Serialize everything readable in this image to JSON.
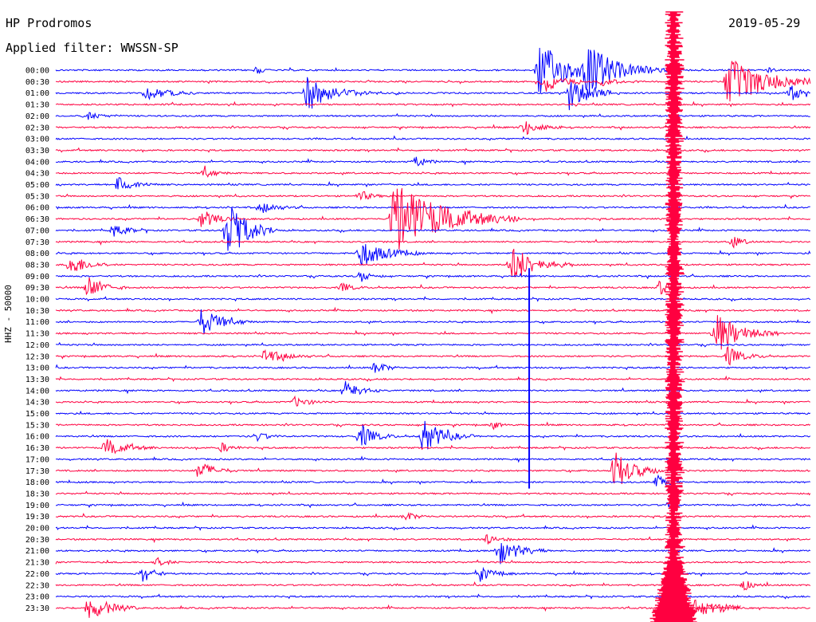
{
  "header": {
    "station": "HP Prodromos",
    "filter": "Applied filter: WWSSN-SP",
    "date": "2019-05-29",
    "channel": "HHZ - 50000"
  },
  "colors": {
    "blue": "#0000ff",
    "red": "#ff0040"
  },
  "chart_data": {
    "type": "helicorder",
    "title": "HP Prodromos",
    "subtitle": "Applied filter: WWSSN-SP",
    "date": "2019-05-29",
    "ylabel": "HHZ - 50000",
    "row_labels": [
      "00:00",
      "00:30",
      "01:00",
      "01:30",
      "02:00",
      "02:30",
      "03:00",
      "03:30",
      "04:00",
      "04:30",
      "05:00",
      "05:30",
      "06:00",
      "06:30",
      "07:00",
      "07:30",
      "08:00",
      "08:30",
      "09:00",
      "09:30",
      "10:00",
      "10:30",
      "11:00",
      "11:30",
      "12:00",
      "12:30",
      "13:00",
      "13:30",
      "14:00",
      "14:30",
      "15:00",
      "15:30",
      "16:00",
      "16:30",
      "17:00",
      "17:30",
      "18:00",
      "18:30",
      "19:00",
      "19:30",
      "20:00",
      "20:30",
      "21:00",
      "21:30",
      "22:00",
      "22:30",
      "23:00",
      "23:30"
    ],
    "row_colors": [
      "blue",
      "red"
    ],
    "minutes_per_row": 30,
    "events": [
      {
        "row": 0,
        "minute": 8.0,
        "amp": 1.0,
        "len": 0.5
      },
      {
        "row": 0,
        "minute": 19.2,
        "amp": 6.0,
        "len": 3.0
      },
      {
        "row": 0,
        "minute": 21.1,
        "amp": 4.5,
        "len": 3.5
      },
      {
        "row": 0,
        "minute": 28.3,
        "amp": 0.6,
        "len": 0.5
      },
      {
        "row": 1,
        "minute": 19.4,
        "amp": 2.5,
        "len": 1.5
      },
      {
        "row": 1,
        "minute": 21.7,
        "amp": 0.8,
        "len": 1.5
      },
      {
        "row": 1,
        "minute": 26.7,
        "amp": 5.0,
        "len": 4.0
      },
      {
        "row": 2,
        "minute": 3.6,
        "amp": 1.5,
        "len": 2.0
      },
      {
        "row": 2,
        "minute": 10.0,
        "amp": 4.0,
        "len": 2.5
      },
      {
        "row": 2,
        "minute": 20.4,
        "amp": 4.0,
        "len": 2.0
      },
      {
        "row": 2,
        "minute": 29.2,
        "amp": 1.8,
        "len": 1.0
      },
      {
        "row": 4,
        "minute": 1.2,
        "amp": 0.8,
        "len": 1.5
      },
      {
        "row": 5,
        "minute": 18.6,
        "amp": 1.8,
        "len": 1.5
      },
      {
        "row": 8,
        "minute": 14.3,
        "amp": 1.2,
        "len": 1.0
      },
      {
        "row": 9,
        "minute": 5.9,
        "amp": 1.3,
        "len": 1.0
      },
      {
        "row": 10,
        "minute": 2.5,
        "amp": 2.0,
        "len": 1.5
      },
      {
        "row": 11,
        "minute": 12.1,
        "amp": 1.2,
        "len": 1.0
      },
      {
        "row": 12,
        "minute": 8.2,
        "amp": 1.2,
        "len": 1.5
      },
      {
        "row": 13,
        "minute": 5.8,
        "amp": 2.0,
        "len": 1.5
      },
      {
        "row": 13,
        "minute": 13.4,
        "amp": 8.0,
        "len": 5.0
      },
      {
        "row": 14,
        "minute": 2.3,
        "amp": 1.3,
        "len": 1.5
      },
      {
        "row": 14,
        "minute": 6.8,
        "amp": 7.0,
        "len": 2.0
      },
      {
        "row": 15,
        "minute": 26.9,
        "amp": 1.2,
        "len": 1.0
      },
      {
        "row": 16,
        "minute": 12.1,
        "amp": 3.0,
        "len": 2.5
      },
      {
        "row": 17,
        "minute": 0.6,
        "amp": 2.5,
        "len": 1.5
      },
      {
        "row": 17,
        "minute": 18.1,
        "amp": 4.0,
        "len": 2.5
      },
      {
        "row": 18,
        "minute": 12.1,
        "amp": 1.2,
        "len": 1.0
      },
      {
        "row": 19,
        "minute": 1.3,
        "amp": 2.5,
        "len": 1.5
      },
      {
        "row": 19,
        "minute": 11.4,
        "amp": 1.0,
        "len": 1.0
      },
      {
        "row": 19,
        "minute": 24.0,
        "amp": 1.5,
        "len": 1.0
      },
      {
        "row": 22,
        "minute": 5.8,
        "amp": 3.0,
        "len": 2.0
      },
      {
        "row": 23,
        "minute": 26.2,
        "amp": 4.5,
        "len": 2.5
      },
      {
        "row": 25,
        "minute": 8.3,
        "amp": 1.5,
        "len": 2.0
      },
      {
        "row": 25,
        "minute": 26.7,
        "amp": 2.0,
        "len": 1.5
      },
      {
        "row": 26,
        "minute": 12.7,
        "amp": 1.5,
        "len": 1.0
      },
      {
        "row": 28,
        "minute": 11.5,
        "amp": 2.0,
        "len": 1.5
      },
      {
        "row": 29,
        "minute": 9.5,
        "amp": 1.0,
        "len": 1.5
      },
      {
        "row": 31,
        "minute": 17.4,
        "amp": 1.0,
        "len": 0.5
      },
      {
        "row": 32,
        "minute": 8.0,
        "amp": 1.0,
        "len": 1.0
      },
      {
        "row": 32,
        "minute": 12.1,
        "amp": 2.5,
        "len": 1.5
      },
      {
        "row": 32,
        "minute": 14.6,
        "amp": 3.5,
        "len": 2.0
      },
      {
        "row": 33,
        "minute": 2.0,
        "amp": 1.8,
        "len": 2.0
      },
      {
        "row": 33,
        "minute": 6.6,
        "amp": 1.0,
        "len": 1.0
      },
      {
        "row": 35,
        "minute": 5.7,
        "amp": 2.0,
        "len": 1.5
      },
      {
        "row": 35,
        "minute": 22.2,
        "amp": 4.0,
        "len": 2.0
      },
      {
        "row": 36,
        "minute": 23.9,
        "amp": 1.5,
        "len": 1.0
      },
      {
        "row": 38,
        "minute": 24.4,
        "amp": 1.0,
        "len": 0.5
      },
      {
        "row": 39,
        "minute": 13.9,
        "amp": 1.0,
        "len": 1.0
      },
      {
        "row": 41,
        "minute": 17.2,
        "amp": 1.5,
        "len": 1.0
      },
      {
        "row": 42,
        "minute": 17.6,
        "amp": 3.0,
        "len": 2.0
      },
      {
        "row": 43,
        "minute": 4.0,
        "amp": 1.0,
        "len": 1.0
      },
      {
        "row": 44,
        "minute": 3.5,
        "amp": 2.0,
        "len": 1.0
      },
      {
        "row": 44,
        "minute": 16.8,
        "amp": 1.5,
        "len": 1.5
      },
      {
        "row": 45,
        "minute": 27.3,
        "amp": 1.2,
        "len": 1.0
      },
      {
        "row": 47,
        "minute": 1.3,
        "amp": 3.0,
        "len": 2.0
      }
    ],
    "large_event": {
      "minute": 24.5,
      "start_row": 0,
      "end_row": 47,
      "amp": 12.0
    },
    "spikes": [
      {
        "minute": 18.8,
        "from_row": 18,
        "to_row": 36
      }
    ]
  }
}
